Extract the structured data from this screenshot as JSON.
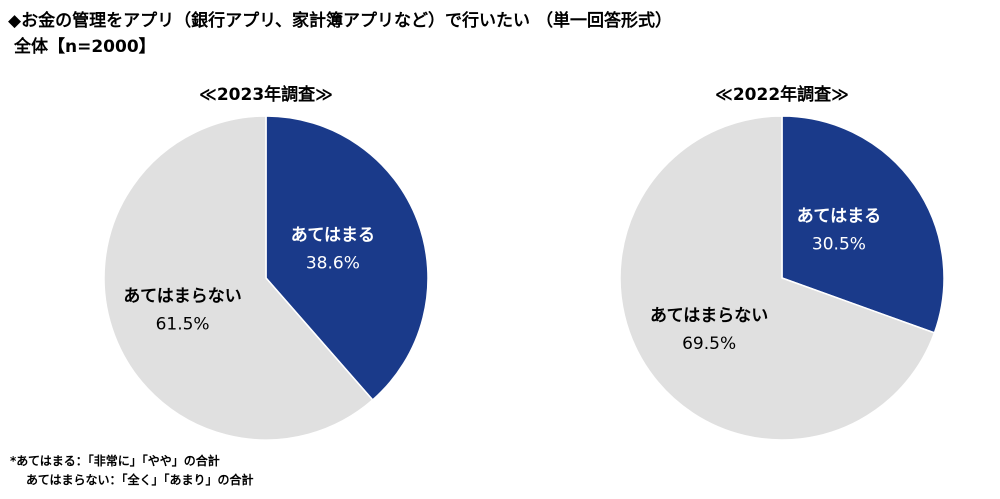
{
  "header": {
    "title": "◆お金の管理をアプリ（銀行アプリ、家計簿アプリなど）で行いたい （単一回答形式）",
    "base": "全体【n=2000】"
  },
  "chart_data": [
    {
      "type": "pie",
      "title": "≪2023年調査≫",
      "slices": [
        {
          "label": "あてはまる",
          "value": 38.6,
          "display": "38.6%",
          "color": "#1a3a8a",
          "text_color": "#ffffff"
        },
        {
          "label": "あてはまらない",
          "value": 61.5,
          "display": "61.5%",
          "color": "#e0e0e0",
          "text_color": "#000000"
        }
      ]
    },
    {
      "type": "pie",
      "title": "≪2022年調査≫",
      "slices": [
        {
          "label": "あてはまる",
          "value": 30.5,
          "display": "30.5%",
          "color": "#1a3a8a",
          "text_color": "#ffffff"
        },
        {
          "label": "あてはまらない",
          "value": 69.5,
          "display": "69.5%",
          "color": "#e0e0e0",
          "text_color": "#000000"
        }
      ]
    }
  ],
  "notes": {
    "line1": "*あてはまる：「非常に」「やや」の合計",
    "line2": "あてはまらない：「全く」「あまり」の合計"
  }
}
